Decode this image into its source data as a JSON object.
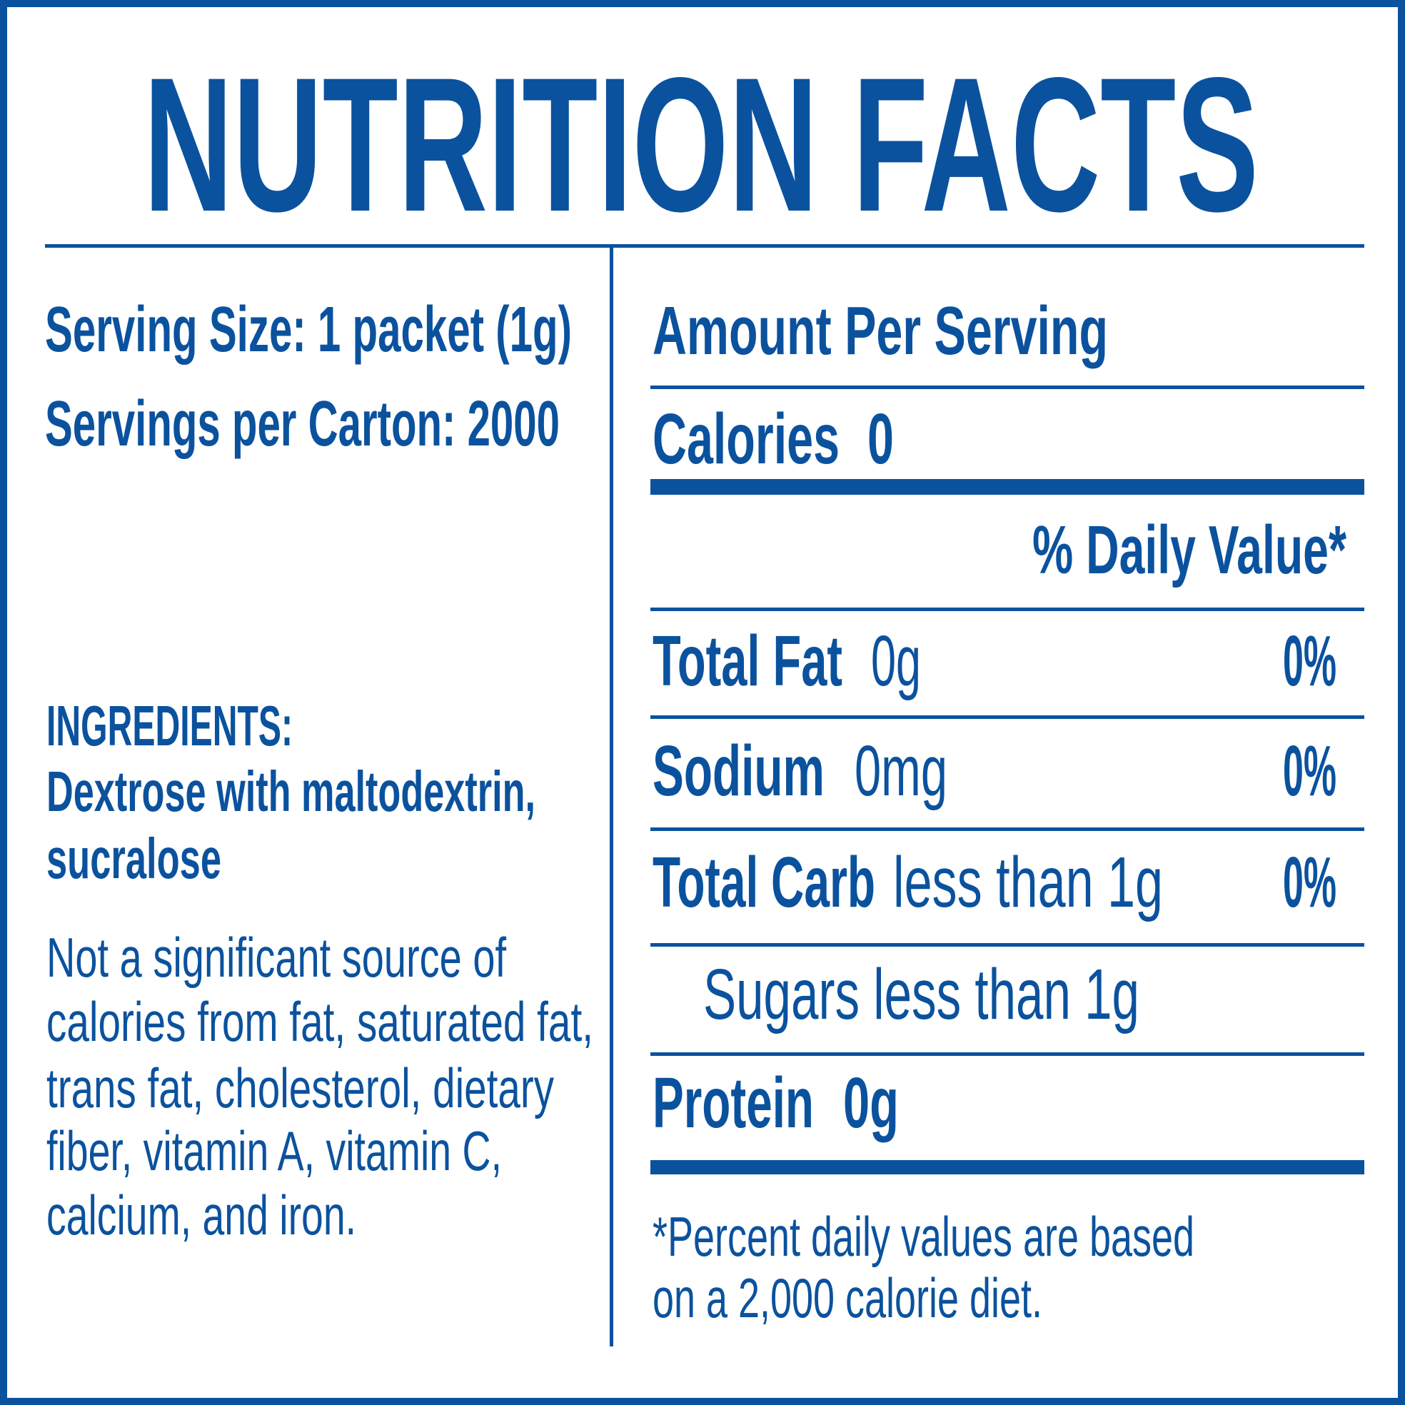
{
  "header": {
    "title": "NUTRITION FACTS"
  },
  "serving": {
    "size": "Serving Size: 1 packet (1g)",
    "per_carton": "Servings per Carton: 2000"
  },
  "ingredients": {
    "heading": "INGREDIENTS:",
    "lines": [
      "Dextrose with maltodextrin,",
      "sucralose"
    ]
  },
  "note": {
    "lines": [
      "Not a significant source of",
      "calories from fat, saturated fat,",
      "trans fat, cholesterol, dietary",
      "fiber, vitamin A, vitamin C,",
      "calcium, and iron."
    ]
  },
  "facts": {
    "amount_per_serving": "Amount Per Serving",
    "calories": {
      "label": "Calories",
      "value": "0"
    },
    "daily_value_heading": "% Daily Value*",
    "rows": [
      {
        "label": "Total Fat",
        "amount": "0g",
        "percent": "0%"
      },
      {
        "label": "Sodium",
        "amount": "0mg",
        "percent": "0%"
      },
      {
        "label": "Total Carb",
        "amount": "less than 1g",
        "percent": "0%"
      }
    ],
    "sugars": "Sugars less than 1g",
    "protein": {
      "label": "Protein",
      "amount": "0g"
    }
  },
  "footnote": {
    "lines": [
      "*Percent daily values are based",
      "on a 2,000 calorie diet."
    ]
  }
}
